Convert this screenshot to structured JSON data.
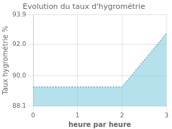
{
  "chart_data": {
    "type": "area",
    "title": "Evolution du taux d'hygrométrie",
    "xlabel": "heure par heure",
    "ylabel": "Taux hygrométrie %",
    "x": [
      0,
      2,
      3
    ],
    "values": [
      89.3,
      89.3,
      92.7
    ],
    "color": "#5bbcd6",
    "line_style": "dotted",
    "xlim": [
      0,
      3
    ],
    "xticks": [
      0,
      1,
      2,
      3
    ],
    "ylim": [
      88.1,
      93.9
    ],
    "yticks": [
      88.1,
      {
        "value": 90.0,
        "label": "90.0"
      },
      {
        "value": 92.0,
        "label": "92.0"
      },
      93.9
    ],
    "grid": true
  }
}
